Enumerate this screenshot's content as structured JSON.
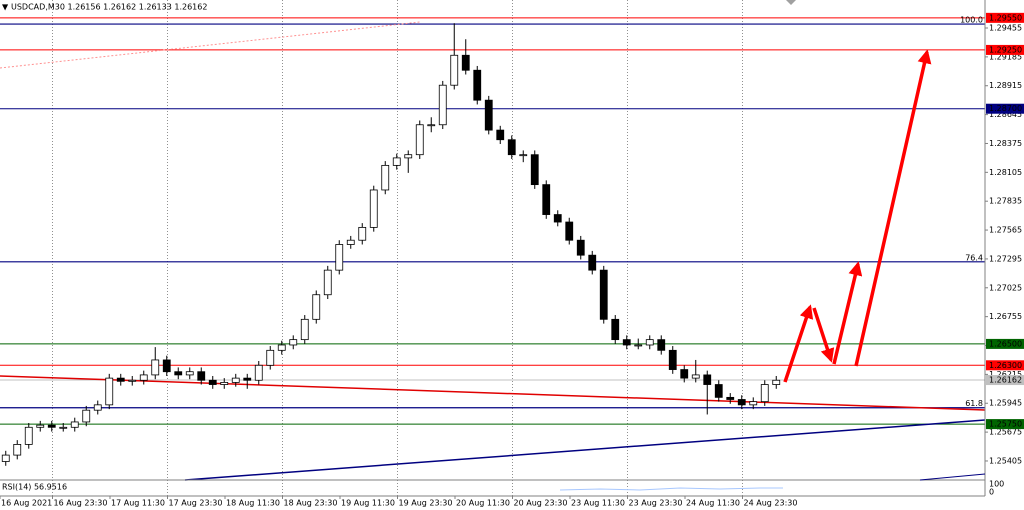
{
  "chart_data": {
    "type": "candlestick",
    "title": "USDCAD,M30 1.26156 1.26162 1.26133 1.26162",
    "categories": [
      "16 Aug 2021",
      null,
      null,
      null,
      null,
      "16 Aug 23:30",
      null,
      null,
      null,
      null,
      "17 Aug 11:30",
      null,
      null,
      null,
      null,
      "17 Aug 23:30",
      null,
      null,
      null,
      null,
      "18 Aug 11:30",
      null,
      null,
      null,
      null,
      "18 Aug 23:30",
      null,
      null,
      null,
      null,
      "19 Aug 11:30",
      null,
      null,
      null,
      null,
      "19 Aug 23:30",
      null,
      null,
      null,
      null,
      "20 Aug 11:30",
      null,
      null,
      null,
      null,
      "20 Aug 23:30",
      null,
      null,
      null,
      null,
      "23 Aug 11:30",
      null,
      null,
      null,
      null,
      "23 Aug 23:30",
      null,
      null,
      null,
      null,
      "24 Aug 11:30",
      null,
      null,
      null,
      null,
      "24 Aug 23:30",
      null,
      null
    ],
    "ohlc": [
      [
        1.254,
        1.255,
        1.2536,
        1.2546
      ],
      [
        1.2546,
        1.256,
        1.2542,
        1.2556
      ],
      [
        1.2556,
        1.2576,
        1.2552,
        1.2572
      ],
      [
        1.2572,
        1.2578,
        1.2568,
        1.2574
      ],
      [
        1.2574,
        1.2578,
        1.2568,
        1.2572
      ],
      [
        1.2572,
        1.2576,
        1.2568,
        1.2572
      ],
      [
        1.2572,
        1.2581,
        1.2568,
        1.2577
      ],
      [
        1.2577,
        1.2592,
        1.2573,
        1.2588
      ],
      [
        1.2588,
        1.2597,
        1.2584,
        1.2593
      ],
      [
        1.2593,
        1.2622,
        1.2589,
        1.2618
      ],
      [
        1.2618,
        1.2622,
        1.2611,
        1.2615
      ],
      [
        1.2615,
        1.262,
        1.2611,
        1.2616
      ],
      [
        1.2616,
        1.2625,
        1.2612,
        1.2621
      ],
      [
        1.2621,
        1.2647,
        1.2617,
        1.2635
      ],
      [
        1.2635,
        1.2639,
        1.262,
        1.2624
      ],
      [
        1.2624,
        1.2628,
        1.2617,
        1.2621
      ],
      [
        1.2621,
        1.2628,
        1.2617,
        1.2624
      ],
      [
        1.2624,
        1.2628,
        1.2612,
        1.2616
      ],
      [
        1.2616,
        1.262,
        1.2608,
        1.2612
      ],
      [
        1.2612,
        1.2618,
        1.2608,
        1.2614
      ],
      [
        1.2614,
        1.2622,
        1.261,
        1.2618
      ],
      [
        1.2618,
        1.2622,
        1.2608,
        1.2616
      ],
      [
        1.2616,
        1.2634,
        1.2612,
        1.263
      ],
      [
        1.263,
        1.2648,
        1.2626,
        1.2644
      ],
      [
        1.2644,
        1.2653,
        1.264,
        1.2649
      ],
      [
        1.2649,
        1.2658,
        1.2645,
        1.2654
      ],
      [
        1.2654,
        1.2677,
        1.265,
        1.2673
      ],
      [
        1.2673,
        1.27,
        1.2669,
        1.2696
      ],
      [
        1.2696,
        1.2723,
        1.2692,
        1.2719
      ],
      [
        1.2719,
        1.2747,
        1.2715,
        1.2743
      ],
      [
        1.2743,
        1.2751,
        1.2739,
        1.2747
      ],
      [
        1.2747,
        1.2763,
        1.2743,
        1.2759
      ],
      [
        1.2759,
        1.2798,
        1.2755,
        1.2794
      ],
      [
        1.2794,
        1.2821,
        1.279,
        1.2817
      ],
      [
        1.2817,
        1.2828,
        1.2813,
        1.2824
      ],
      [
        1.2824,
        1.2831,
        1.281,
        1.2827
      ],
      [
        1.2827,
        1.2859,
        1.2823,
        1.2855
      ],
      [
        1.2855,
        1.2862,
        1.2848,
        1.2855
      ],
      [
        1.2855,
        1.2896,
        1.2851,
        1.2892
      ],
      [
        1.2892,
        1.295,
        1.2888,
        1.292
      ],
      [
        1.292,
        1.2935,
        1.2902,
        1.2906
      ],
      [
        1.2906,
        1.291,
        1.2874,
        1.2878
      ],
      [
        1.2878,
        1.2882,
        1.2846,
        1.285
      ],
      [
        1.285,
        1.2854,
        1.2837,
        1.2841
      ],
      [
        1.2841,
        1.2845,
        1.2823,
        1.2827
      ],
      [
        1.2827,
        1.2831,
        1.282,
        1.2827
      ],
      [
        1.2827,
        1.2831,
        1.2795,
        1.2799
      ],
      [
        1.2799,
        1.2803,
        1.2767,
        1.2771
      ],
      [
        1.2771,
        1.2775,
        1.276,
        1.2764
      ],
      [
        1.2764,
        1.2768,
        1.2743,
        1.2747
      ],
      [
        1.2747,
        1.2751,
        1.2729,
        1.2733
      ],
      [
        1.2733,
        1.2737,
        1.2715,
        1.2719
      ],
      [
        1.2719,
        1.2723,
        1.2669,
        1.2673
      ],
      [
        1.2673,
        1.2677,
        1.265,
        1.2654
      ],
      [
        1.2654,
        1.2658,
        1.2645,
        1.2649
      ],
      [
        1.2649,
        1.2655,
        1.2645,
        1.2649
      ],
      [
        1.2649,
        1.2658,
        1.2645,
        1.2654
      ],
      [
        1.2654,
        1.2658,
        1.264,
        1.2644
      ],
      [
        1.2644,
        1.2648,
        1.2622,
        1.2626
      ],
      [
        1.2626,
        1.263,
        1.2614,
        1.2618
      ],
      [
        1.2618,
        1.2635,
        1.2614,
        1.2621
      ],
      [
        1.2621,
        1.2625,
        1.2584,
        1.2612
      ],
      [
        1.2612,
        1.2616,
        1.2596,
        1.26
      ],
      [
        1.26,
        1.2604,
        1.2594,
        1.2598
      ],
      [
        1.2598,
        1.2602,
        1.2589,
        1.2593
      ],
      [
        1.2593,
        1.26,
        1.2589,
        1.2596
      ],
      [
        1.2596,
        1.2616,
        1.2592,
        1.2612
      ],
      [
        1.2612,
        1.262,
        1.2608,
        1.2616
      ]
    ],
    "up_color": "#ffffff",
    "down_color": "#000000",
    "ylim": [
      1.25227,
      1.29717
    ],
    "yticks": [
      1.29455,
      1.29185,
      1.28915,
      1.28645,
      1.28375,
      1.28105,
      1.27835,
      1.27565,
      1.27295,
      1.27025,
      1.26755,
      1.26485,
      1.26215,
      1.25945,
      1.25675,
      1.25405
    ],
    "price_lines": [
      {
        "value": 1.2955,
        "label": "1.29550",
        "color": "#ff0000"
      },
      {
        "value": 1.2925,
        "label": "1.29250",
        "color": "#ff0000"
      },
      {
        "value": 1.287,
        "label": "1.28700",
        "color": "#000080"
      },
      {
        "value": 1.265,
        "label": "1.26500",
        "color": "#006400"
      },
      {
        "value": 1.263,
        "label": "1.26300",
        "color": "#ff0000"
      },
      {
        "value": 1.26162,
        "label": "1.26162",
        "color": "#c0c0c0"
      },
      {
        "value": 1.2575,
        "label": "1.25750",
        "color": "#006400"
      }
    ],
    "fib_levels": [
      {
        "value": 1.29492,
        "label": "100.0"
      },
      {
        "value": 1.27268,
        "label": "76.4"
      },
      {
        "value": 1.25903,
        "label": "61.8"
      }
    ],
    "indicator": {
      "title": "RSI(14) 56.9516",
      "yticks": [
        100,
        0
      ]
    }
  }
}
